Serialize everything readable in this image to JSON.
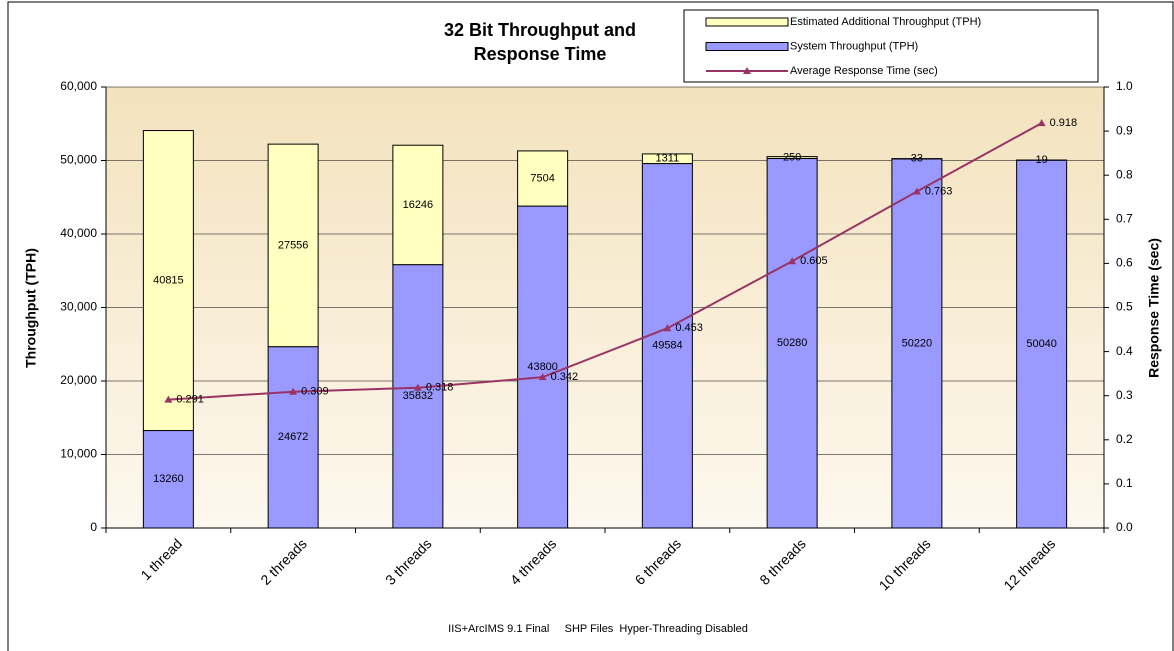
{
  "chart_data": {
    "type": "stacked-bar-line",
    "title": "32 Bit Throughput and Response Time",
    "subtitle": "IIS+ArcIMS 9.1 Final     SHP Files  Hyper-Threading Disabled",
    "ylabel": "Throughput (TPH)",
    "y2label": "Response Time (sec)",
    "categories": [
      "1 thread",
      "2 threads",
      "3 threads",
      "4 threads",
      "6 threads",
      "8 threads",
      "10 threads",
      "12 threads"
    ],
    "series": [
      {
        "name": "System Throughput (TPH)",
        "color": "#9999ff",
        "kind": "bar",
        "values": [
          13260,
          24672,
          35832,
          43800,
          49584,
          50280,
          50220,
          50040
        ]
      },
      {
        "name": "Estimated Additional Throughput (TPH)",
        "color": "#ffffc0",
        "kind": "bar",
        "values": [
          40815,
          27556,
          16246,
          7504,
          1311,
          250,
          33,
          19
        ]
      },
      {
        "name": "Average Response Time (sec)",
        "color": "#993366",
        "kind": "line",
        "axis": "y2",
        "values": [
          0.291,
          0.309,
          0.318,
          0.342,
          0.453,
          0.605,
          0.763,
          0.918
        ]
      }
    ],
    "legend_order": [
      1,
      0,
      2
    ],
    "ylim": [
      0,
      60000
    ],
    "yticks": [
      0,
      {
        "value": 10000,
        "label": "10,000"
      },
      {
        "value": 20000,
        "label": "20,000"
      },
      {
        "value": 30000,
        "label": "30,000"
      },
      {
        "value": 40000,
        "label": "40,000"
      },
      {
        "value": 50000,
        "label": "50,000"
      },
      {
        "value": 60000,
        "label": "60,000"
      }
    ],
    "y2lim": [
      0,
      1
    ],
    "y2ticks": [
      {
        "value": 0,
        "label": "0.0"
      },
      0.1,
      0.2,
      0.3,
      0.4,
      0.5,
      0.6,
      0.7,
      0.8,
      0.9,
      {
        "value": 1,
        "label": "1.0"
      }
    ],
    "grid": true,
    "legend": "top-right"
  }
}
